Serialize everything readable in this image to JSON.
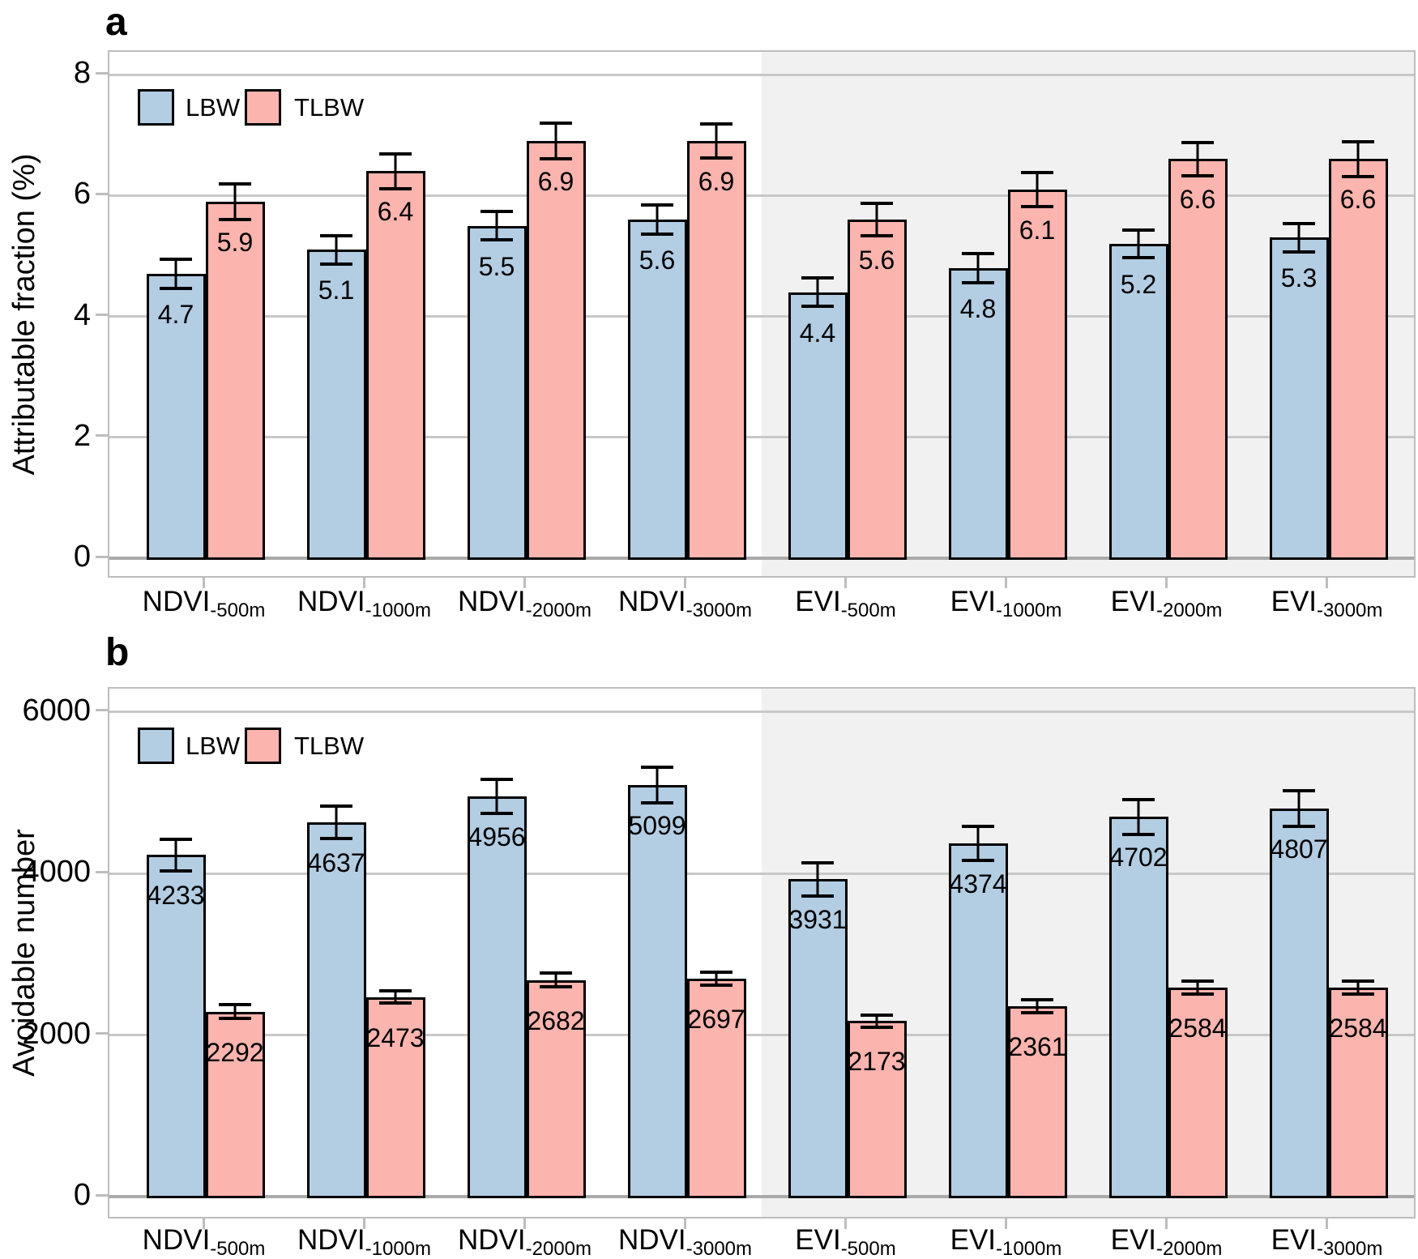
{
  "colors": {
    "lbw_fill": "#B3CDE3",
    "tlbw_fill": "#FBB4AE",
    "shade_bg": "#F1F1F1",
    "grid": "#C8C8C8",
    "zero_line": "#AAAAAA",
    "panel_border": "#BDBDBD",
    "bar_stroke": "#000000",
    "text": "#000000"
  },
  "chart_data": [
    {
      "type": "bar",
      "panel_label": "a",
      "ylabel": "Attributable fraction (%)",
      "ylim": [
        0,
        8
      ],
      "yticks": [
        0,
        2,
        4,
        6,
        8
      ],
      "grid": true,
      "legend_position": "top-left-inside",
      "shaded_right_half": true,
      "legend": [
        {
          "name": "LBW",
          "color_key": "lbw_fill"
        },
        {
          "name": "TLBW",
          "color_key": "tlbw_fill"
        }
      ],
      "categories": [
        {
          "prefix": "NDVI",
          "subscript": "-500m"
        },
        {
          "prefix": "NDVI",
          "subscript": "-1000m"
        },
        {
          "prefix": "NDVI",
          "subscript": "-2000m"
        },
        {
          "prefix": "NDVI",
          "subscript": "-3000m"
        },
        {
          "prefix": "EVI",
          "subscript": "-500m"
        },
        {
          "prefix": "EVI",
          "subscript": "-1000m"
        },
        {
          "prefix": "EVI",
          "subscript": "-2000m"
        },
        {
          "prefix": "EVI",
          "subscript": "-3000m"
        }
      ],
      "series": [
        {
          "name": "LBW",
          "color_key": "lbw_fill",
          "values": [
            4.7,
            5.1,
            5.5,
            5.6,
            4.4,
            4.8,
            5.2,
            5.3
          ],
          "labels": [
            "4.7",
            "5.1",
            "5.5",
            "5.6",
            "4.4",
            "4.8",
            "5.2",
            "5.3"
          ],
          "err": [
            0.27,
            0.26,
            0.26,
            0.27,
            0.26,
            0.27,
            0.26,
            0.26
          ]
        },
        {
          "name": "TLBW",
          "color_key": "tlbw_fill",
          "values": [
            5.9,
            6.4,
            6.9,
            6.9,
            5.6,
            6.1,
            6.6,
            6.6
          ],
          "labels": [
            "5.9",
            "6.4",
            "6.9",
            "6.9",
            "5.6",
            "6.1",
            "6.6",
            "6.6"
          ],
          "err": [
            0.32,
            0.31,
            0.32,
            0.31,
            0.3,
            0.31,
            0.3,
            0.31
          ]
        }
      ]
    },
    {
      "type": "bar",
      "panel_label": "b",
      "ylabel": "Avoidable number",
      "ylim": [
        0,
        6000
      ],
      "yticks": [
        0,
        2000,
        4000,
        6000
      ],
      "grid": true,
      "legend_position": "top-left-inside",
      "shaded_right_half": true,
      "legend": [
        {
          "name": "LBW",
          "color_key": "lbw_fill"
        },
        {
          "name": "TLBW",
          "color_key": "tlbw_fill"
        }
      ],
      "categories": [
        {
          "prefix": "NDVI",
          "subscript": "-500m"
        },
        {
          "prefix": "NDVI",
          "subscript": "-1000m"
        },
        {
          "prefix": "NDVI",
          "subscript": "-2000m"
        },
        {
          "prefix": "NDVI",
          "subscript": "-3000m"
        },
        {
          "prefix": "EVI",
          "subscript": "-500m"
        },
        {
          "prefix": "EVI",
          "subscript": "-1000m"
        },
        {
          "prefix": "EVI",
          "subscript": "-2000m"
        },
        {
          "prefix": "EVI",
          "subscript": "-3000m"
        }
      ],
      "series": [
        {
          "name": "LBW",
          "color_key": "lbw_fill",
          "values": [
            4233,
            4637,
            4956,
            5099,
            3931,
            4374,
            4702,
            4807
          ],
          "labels": [
            "4233",
            "4637",
            "4956",
            "5099",
            "3931",
            "4374",
            "4702",
            "4807"
          ],
          "err": [
            215,
            220,
            235,
            240,
            225,
            230,
            235,
            240
          ]
        },
        {
          "name": "TLBW",
          "color_key": "tlbw_fill",
          "values": [
            2292,
            2473,
            2682,
            2697,
            2173,
            2361,
            2584,
            2584
          ],
          "labels": [
            "2292",
            "2473",
            "2682",
            "2697",
            "2173",
            "2361",
            "2584",
            "2584"
          ],
          "err": [
            105,
            100,
            105,
            100,
            95,
            100,
            100,
            100
          ]
        }
      ]
    }
  ]
}
